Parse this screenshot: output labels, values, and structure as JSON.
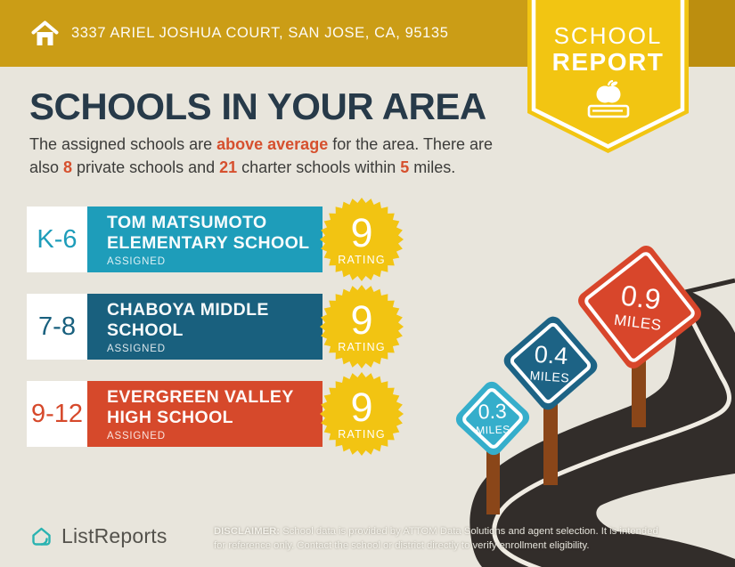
{
  "header": {
    "address": "3337 ARIEL JOSHUA COURT, SAN JOSE, CA, 95135",
    "badge": {
      "line1": "SCHOOL",
      "line2": "REPORT"
    }
  },
  "main": {
    "title": "SCHOOLS IN YOUR AREA",
    "subtitle": {
      "s1": "The assigned schools are ",
      "h1": "above average",
      "s2": " for the area. There are also ",
      "h2": "8",
      "s3": " private schools and ",
      "h3": "21",
      "s4": " charter schools within ",
      "h4": "5",
      "s5": " miles."
    }
  },
  "schools": [
    {
      "grades": "K-6",
      "name": "TOM MATSUMOTO ELEMENTARY SCHOOL",
      "status": "ASSIGNED",
      "rating": "9",
      "rating_label": "RATING",
      "color": "#1E9DBA"
    },
    {
      "grades": "7-8",
      "name": "CHABOYA MIDDLE SCHOOL",
      "status": "ASSIGNED",
      "rating": "9",
      "rating_label": "RATING",
      "color": "#19607E"
    },
    {
      "grades": "9-12",
      "name": "EVERGREEN VALLEY HIGH SCHOOL",
      "status": "ASSIGNED",
      "rating": "9",
      "rating_label": "RATING",
      "color": "#D6492B"
    }
  ],
  "signs": [
    {
      "value": "0.3",
      "unit": "MILES",
      "color": "#35AECB"
    },
    {
      "value": "0.4",
      "unit": "MILES",
      "color": "#1D6385"
    },
    {
      "value": "0.9",
      "unit": "MILES",
      "color": "#D8462B"
    }
  ],
  "footer": {
    "brand": "ListReports",
    "disclaimer_label": "DISCLAIMER:",
    "disclaimer_line1": " School data is provided by ATTOM Data Solutions and agent selection. It is intended",
    "disclaimer_line2": "for reference only. Contact the school or district directly to verify enrollment eligibility."
  },
  "colors": {
    "header_bar": "#CB9D16",
    "header_bar_right": "#BC8E0F",
    "badge_yellow": "#F2C512",
    "background": "#E8E5DC",
    "title_navy": "#273A49",
    "accent_red": "#D6502E",
    "rating_burst_yellow": "#F2C412",
    "road_dark": "#322D2A",
    "post_brown": "#8A4619",
    "logo_teal": "#2AB3B1"
  }
}
